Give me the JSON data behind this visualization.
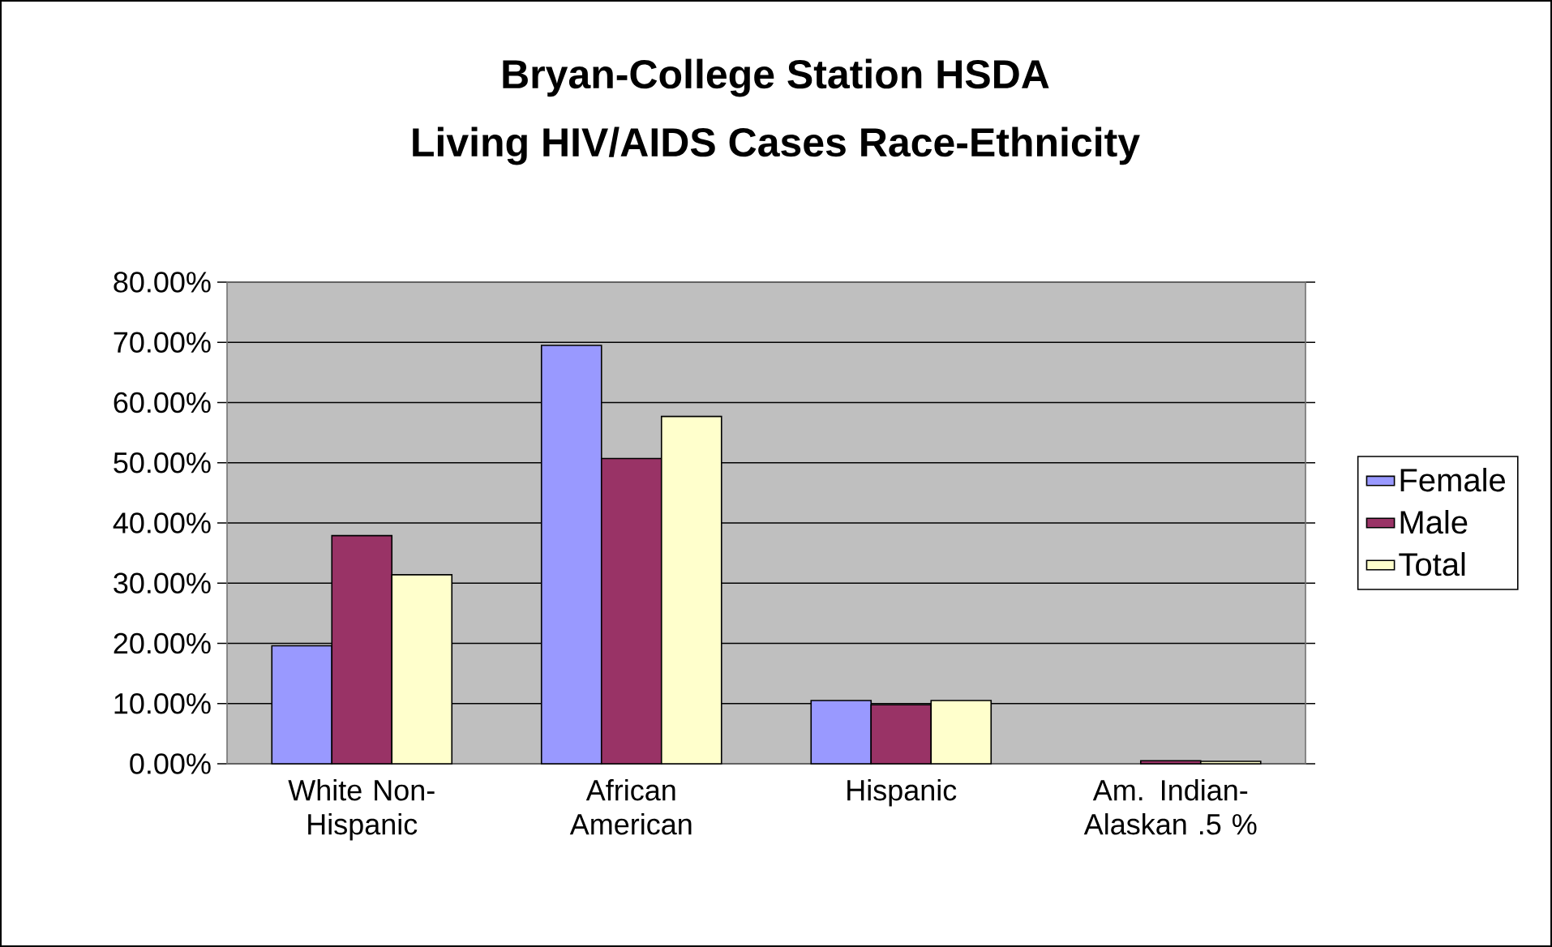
{
  "chart_data": {
    "type": "bar",
    "title": "Bryan-College Station HSDA",
    "subtitle": "Living HIV/AIDS Cases Race-Ethnicity",
    "categories": [
      "White Non-Hispanic",
      "African American",
      "Hispanic",
      "Am. Indian-Alaskan .5 %"
    ],
    "series": [
      {
        "name": "Female",
        "color": "#9999ff",
        "values": [
          19.6,
          69.5,
          10.5,
          null
        ]
      },
      {
        "name": "Male",
        "color": "#993366",
        "values": [
          37.9,
          50.7,
          9.8,
          0.5
        ]
      },
      {
        "name": "Total",
        "color": "#ffffcc",
        "values": [
          31.4,
          57.7,
          10.5,
          0.4
        ]
      }
    ],
    "ylim": [
      0,
      80
    ],
    "yticks": [
      {
        "value": 0,
        "label": "0.00%"
      },
      {
        "value": 10,
        "label": "10.00%"
      },
      {
        "value": 20,
        "label": "20.00%"
      },
      {
        "value": 30,
        "label": "30.00%"
      },
      {
        "value": 40,
        "label": "40.00%"
      },
      {
        "value": 50,
        "label": "50.00%"
      },
      {
        "value": 60,
        "label": "60.00%"
      },
      {
        "value": 70,
        "label": "70.00%"
      },
      {
        "value": 80,
        "label": "80.00%"
      }
    ],
    "grid": "y",
    "legend": "right"
  }
}
